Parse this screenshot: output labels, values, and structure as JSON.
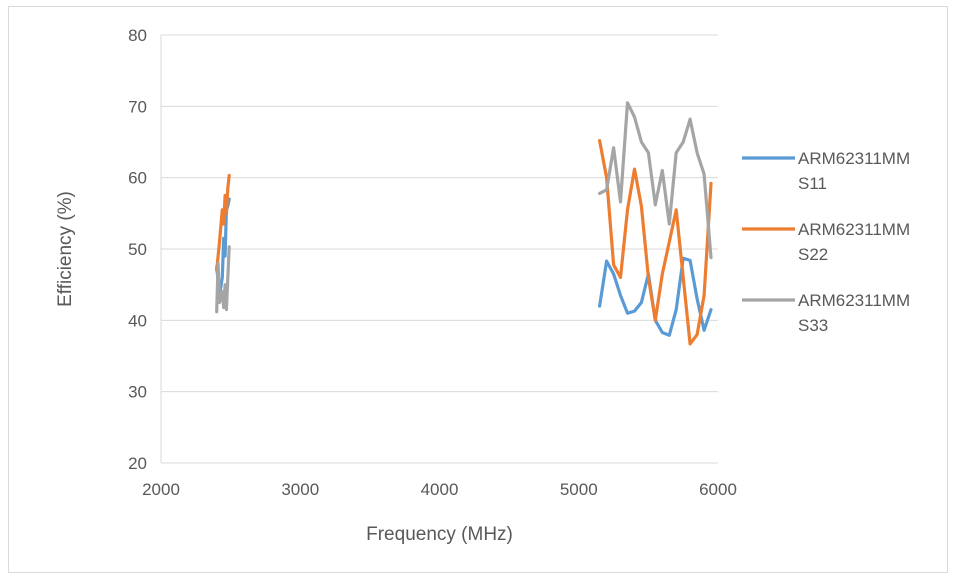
{
  "chart_data": {
    "type": "line",
    "title": "",
    "xlabel": "Frequency (MHz)",
    "ylabel": "Efficiency (%)",
    "xlim": [
      2000,
      6000
    ],
    "ylim": [
      20,
      80
    ],
    "xticks": [
      2000,
      3000,
      4000,
      5000,
      6000
    ],
    "yticks": [
      20,
      30,
      40,
      50,
      60,
      70,
      80
    ],
    "grid": true,
    "legend_position": "right",
    "series": [
      {
        "name": "ARM62311MM S11",
        "legend_lines": [
          "ARM62311MM",
          "S11"
        ],
        "color": "#5b9bd5",
        "segments": [
          [
            [
              2400,
              47.5
            ],
            [
              2420,
              43.5
            ],
            [
              2440,
              46.0
            ],
            [
              2450,
              51.5
            ],
            [
              2460,
              49.0
            ],
            [
              2470,
              55.5
            ],
            [
              2480,
              56.0
            ],
            [
              2490,
              57.0
            ]
          ],
          [
            [
              5150,
              42.0
            ],
            [
              5200,
              48.3
            ],
            [
              5250,
              46.5
            ],
            [
              5300,
              43.5
            ],
            [
              5350,
              41.0
            ],
            [
              5400,
              41.3
            ],
            [
              5450,
              42.5
            ],
            [
              5500,
              46.5
            ],
            [
              5550,
              40.0
            ],
            [
              5600,
              38.3
            ],
            [
              5650,
              37.9
            ],
            [
              5700,
              41.5
            ],
            [
              5750,
              48.7
            ],
            [
              5800,
              48.4
            ],
            [
              5850,
              43.0
            ],
            [
              5900,
              38.6
            ],
            [
              5950,
              41.5
            ]
          ]
        ]
      },
      {
        "name": "ARM62311MM S22",
        "legend_lines": [
          "ARM62311MM",
          "S22"
        ],
        "color": "#ed7d31",
        "segments": [
          [
            [
              2400,
              47.0
            ],
            [
              2420,
              51.0
            ],
            [
              2440,
              55.5
            ],
            [
              2450,
              53.5
            ],
            [
              2460,
              57.5
            ],
            [
              2470,
              55.0
            ],
            [
              2480,
              58.5
            ],
            [
              2490,
              60.3
            ]
          ],
          [
            [
              5150,
              65.2
            ],
            [
              5200,
              60.0
            ],
            [
              5250,
              47.8
            ],
            [
              5300,
              46.0
            ],
            [
              5350,
              55.5
            ],
            [
              5400,
              61.2
            ],
            [
              5450,
              56.0
            ],
            [
              5500,
              46.0
            ],
            [
              5550,
              40.0
            ],
            [
              5600,
              46.5
            ],
            [
              5650,
              51.0
            ],
            [
              5700,
              55.5
            ],
            [
              5750,
              46.0
            ],
            [
              5800,
              36.7
            ],
            [
              5850,
              38.0
            ],
            [
              5900,
              43.5
            ],
            [
              5950,
              59.2
            ]
          ]
        ]
      },
      {
        "name": "ARM62311MM S33",
        "legend_lines": [
          "ARM62311MM",
          "S33"
        ],
        "color": "#a5a5a5",
        "segments": [
          [
            [
              2400,
              41.2
            ],
            [
              2410,
              48.0
            ],
            [
              2420,
              42.5
            ],
            [
              2440,
              44.0
            ],
            [
              2450,
              41.8
            ],
            [
              2460,
              45.0
            ],
            [
              2470,
              41.5
            ],
            [
              2490,
              50.3
            ]
          ],
          [
            [
              5150,
              57.8
            ],
            [
              5200,
              58.3
            ],
            [
              5250,
              64.2
            ],
            [
              5300,
              56.6
            ],
            [
              5350,
              70.5
            ],
            [
              5400,
              68.5
            ],
            [
              5450,
              65.0
            ],
            [
              5500,
              63.5
            ],
            [
              5550,
              56.2
            ],
            [
              5600,
              61.0
            ],
            [
              5650,
              53.5
            ],
            [
              5700,
              63.5
            ],
            [
              5750,
              65.0
            ],
            [
              5800,
              68.2
            ],
            [
              5850,
              63.5
            ],
            [
              5900,
              60.5
            ],
            [
              5950,
              48.8
            ]
          ]
        ]
      }
    ]
  }
}
